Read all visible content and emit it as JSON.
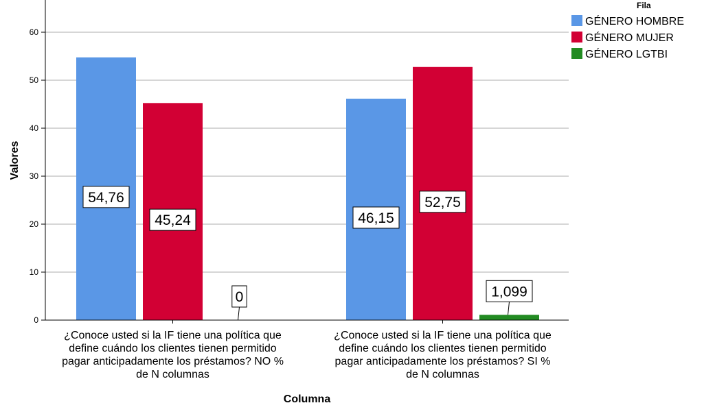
{
  "chart_data": {
    "type": "bar",
    "categories": [
      [
        "¿Conoce usted si la IF tiene una política que",
        "define cuándo los clientes tienen permitido",
        "pagar anticipadamente los préstamos? NO %",
        "de N columnas"
      ],
      [
        "¿Conoce usted si la IF tiene una política que",
        "define cuándo los clientes tienen permitido",
        "pagar anticipadamente los préstamos? SI %",
        "de N columnas"
      ]
    ],
    "series": [
      {
        "name": "GÉNERO HOMBRE",
        "values": [
          54.76,
          46.15
        ],
        "labels": [
          "54,76",
          "46,15"
        ],
        "color": "#5a97e6"
      },
      {
        "name": "GÉNERO MUJER",
        "values": [
          45.24,
          52.75
        ],
        "labels": [
          "45,24",
          "52,75"
        ],
        "color": "#d20034"
      },
      {
        "name": "GÉNERO LGTBI",
        "values": [
          0,
          1.099
        ],
        "labels": [
          "0",
          "1,099"
        ],
        "color": "#228b22"
      }
    ],
    "xlabel": "Columna",
    "ylabel": "Valores",
    "ylim": [
      0,
      60
    ],
    "yticks": [
      0,
      10,
      20,
      30,
      40,
      50,
      60
    ],
    "grid": true,
    "legend": {
      "title": "Fila",
      "position": "top-right"
    }
  }
}
